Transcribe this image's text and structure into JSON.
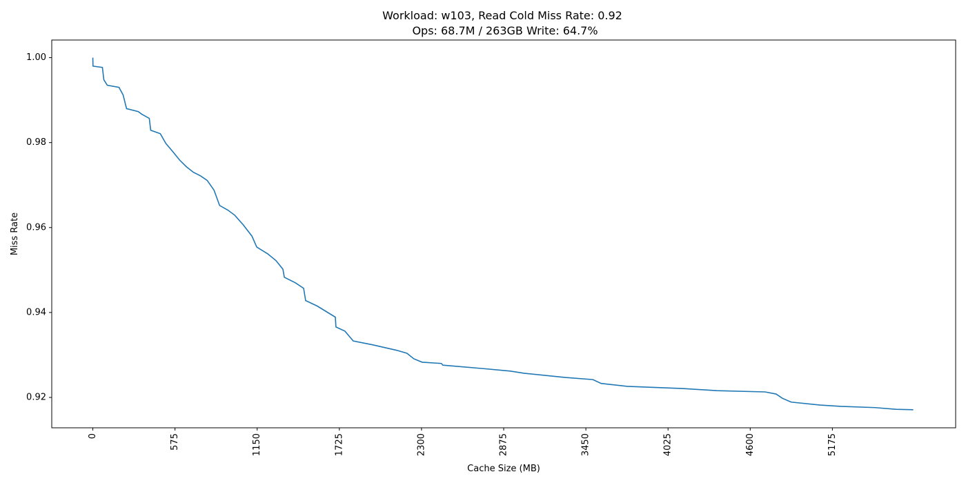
{
  "chart_data": {
    "type": "line",
    "title": "Workload: w103, Read Cold Miss Rate: 0.92",
    "subtitle": "Ops: 68.7M / 263GB Write: 64.7%",
    "x_label": "Cache Size (MB)",
    "y_label": "Miss Rate",
    "xlim": [
      -287.5,
      6037.5
    ],
    "ylim": [
      0.91285,
      1.00415
    ],
    "xticks": [
      0,
      575,
      1150,
      1725,
      2300,
      2875,
      3450,
      4025,
      4600,
      5175
    ],
    "yticks": [
      0.92,
      0.94,
      0.96,
      0.98,
      {
        "value": 1,
        "label": "1.00"
      }
    ],
    "series": [
      {
        "color": "#1f77b4",
        "x": [
          0,
          1,
          67,
          77,
          101,
          183,
          212,
          236,
          318,
          342,
          395,
          405,
          472,
          511,
          559,
          607,
          655,
          704,
          752,
          800,
          848,
          887,
          945,
          993,
          1051,
          1113,
          1147,
          1224,
          1282,
          1330,
          1340,
          1417,
          1475,
          1489,
          1571,
          1697,
          1701,
          1764,
          1822,
          1957,
          2126,
          2198,
          2246,
          2304,
          2439,
          2449,
          2728,
          2921,
          3017,
          3307,
          3499,
          3557,
          3740,
          4126,
          4367,
          4704,
          4781,
          4825,
          4887,
          5090,
          5235,
          5476,
          5620,
          5741
        ],
        "values": [
          1.0,
          0.998,
          0.9977,
          0.9948,
          0.9935,
          0.993,
          0.9912,
          0.988,
          0.9873,
          0.9867,
          0.9857,
          0.9829,
          0.9821,
          0.9798,
          0.9779,
          0.9759,
          0.9743,
          0.973,
          0.9722,
          0.9711,
          0.9688,
          0.9652,
          0.9641,
          0.9629,
          0.9607,
          0.958,
          0.9554,
          0.9538,
          0.9522,
          0.9502,
          0.9483,
          0.947,
          0.9457,
          0.9428,
          0.9415,
          0.9389,
          0.9366,
          0.9356,
          0.9333,
          0.9324,
          0.9311,
          0.9304,
          0.9291,
          0.9283,
          0.928,
          0.9276,
          0.9268,
          0.9262,
          0.9257,
          0.9247,
          0.9242,
          0.9233,
          0.9226,
          0.9221,
          0.9216,
          0.9213,
          0.9208,
          0.9198,
          0.9189,
          0.9182,
          0.9179,
          0.9176,
          0.9172,
          0.9171
        ]
      }
    ]
  }
}
